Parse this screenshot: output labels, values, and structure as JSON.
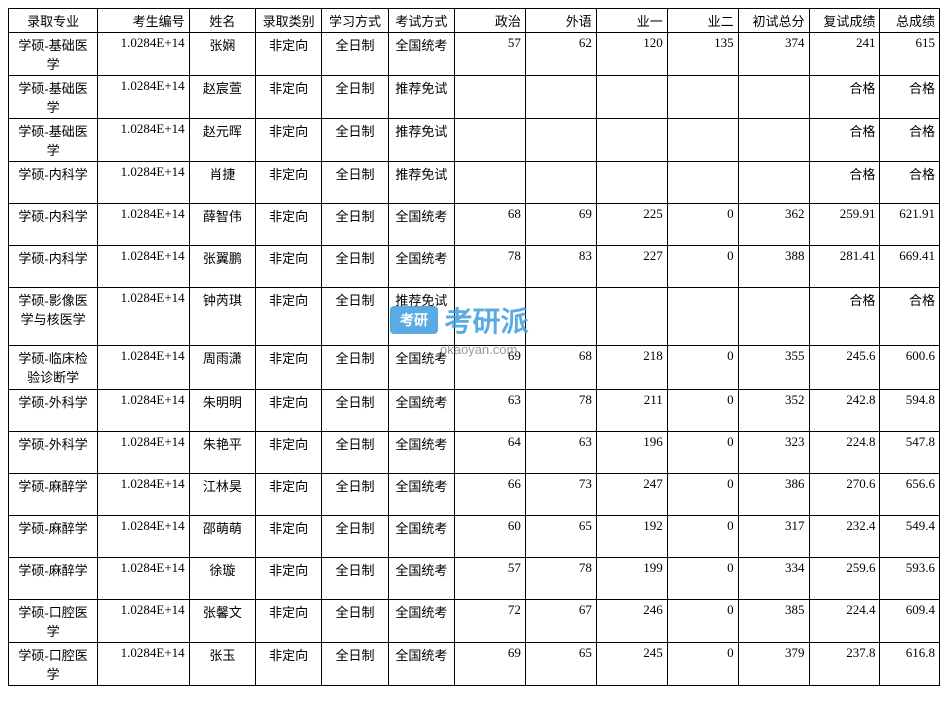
{
  "table": {
    "columns": [
      "录取专业",
      "考生编号",
      "姓名",
      "录取类别",
      "学习方式",
      "考试方式",
      "政治",
      "外语",
      "业一",
      "业二",
      "初试总分",
      "复试成绩",
      "总成绩"
    ],
    "rows": [
      [
        "学硕-基础医学",
        "1.0284E+14",
        "张娴",
        "非定向",
        "全日制",
        "全国统考",
        "57",
        "62",
        "120",
        "135",
        "374",
        "241",
        "615"
      ],
      [
        "学硕-基础医学",
        "1.0284E+14",
        "赵宸萱",
        "非定向",
        "全日制",
        "推荐免试",
        "",
        "",
        "",
        "",
        "",
        "合格",
        "合格"
      ],
      [
        "学硕-基础医学",
        "1.0284E+14",
        "赵元晖",
        "非定向",
        "全日制",
        "推荐免试",
        "",
        "",
        "",
        "",
        "",
        "合格",
        "合格"
      ],
      [
        "学硕-内科学",
        "1.0284E+14",
        "肖捷",
        "非定向",
        "全日制",
        "推荐免试",
        "",
        "",
        "",
        "",
        "",
        "合格",
        "合格"
      ],
      [
        "学硕-内科学",
        "1.0284E+14",
        "薛智伟",
        "非定向",
        "全日制",
        "全国统考",
        "68",
        "69",
        "225",
        "0",
        "362",
        "259.91",
        "621.91"
      ],
      [
        "学硕-内科学",
        "1.0284E+14",
        "张翼鹏",
        "非定向",
        "全日制",
        "全国统考",
        "78",
        "83",
        "227",
        "0",
        "388",
        "281.41",
        "669.41"
      ],
      [
        "学硕-影像医学与核医学",
        "1.0284E+14",
        "钟芮琪",
        "非定向",
        "全日制",
        "推荐免试",
        "",
        "",
        "",
        "",
        "",
        "合格",
        "合格"
      ],
      [
        "学硕-临床检验诊断学",
        "1.0284E+14",
        "周雨潇",
        "非定向",
        "全日制",
        "全国统考",
        "69",
        "68",
        "218",
        "0",
        "355",
        "245.6",
        "600.6"
      ],
      [
        "学硕-外科学",
        "1.0284E+14",
        "朱明明",
        "非定向",
        "全日制",
        "全国统考",
        "63",
        "78",
        "211",
        "0",
        "352",
        "242.8",
        "594.8"
      ],
      [
        "学硕-外科学",
        "1.0284E+14",
        "朱艳平",
        "非定向",
        "全日制",
        "全国统考",
        "64",
        "63",
        "196",
        "0",
        "323",
        "224.8",
        "547.8"
      ],
      [
        "学硕-麻醉学",
        "1.0284E+14",
        "江林昊",
        "非定向",
        "全日制",
        "全国统考",
        "66",
        "73",
        "247",
        "0",
        "386",
        "270.6",
        "656.6"
      ],
      [
        "学硕-麻醉学",
        "1.0284E+14",
        "邵萌萌",
        "非定向",
        "全日制",
        "全国统考",
        "60",
        "65",
        "192",
        "0",
        "317",
        "232.4",
        "549.4"
      ],
      [
        "学硕-麻醉学",
        "1.0284E+14",
        "徐璇",
        "非定向",
        "全日制",
        "全国统考",
        "57",
        "78",
        "199",
        "0",
        "334",
        "259.6",
        "593.6"
      ],
      [
        "学硕-口腔医学",
        "1.0284E+14",
        "张馨文",
        "非定向",
        "全日制",
        "全国统考",
        "72",
        "67",
        "246",
        "0",
        "385",
        "224.4",
        "609.4"
      ],
      [
        "学硕-口腔医学",
        "1.0284E+14",
        "张玉",
        "非定向",
        "全日制",
        "全国统考",
        "69",
        "65",
        "245",
        "0",
        "379",
        "237.8",
        "616.8"
      ]
    ],
    "border_color": "#000000",
    "background_color": "#ffffff",
    "font_size": 13,
    "font_family": "SimSun"
  },
  "watermark": {
    "logo_text": "考研",
    "brand_text": "考研派",
    "url": "okaoyan.com",
    "logo_bg_color": "#3d9de0",
    "text_color": "#3d9de0",
    "url_color": "#888888"
  }
}
